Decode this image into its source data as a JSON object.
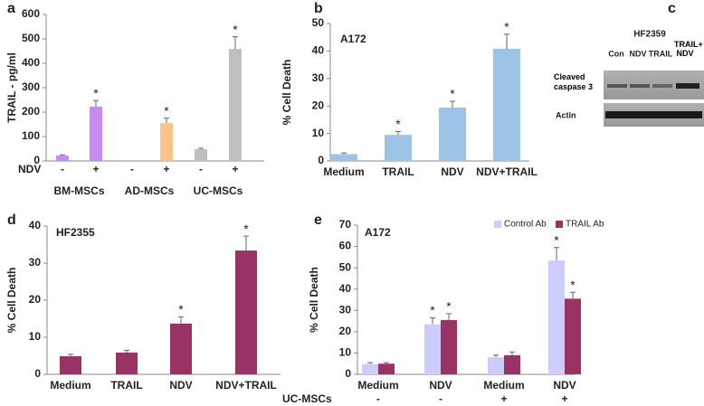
{
  "chart_data": [
    {
      "type": "bar",
      "panel": "a",
      "ylabel": "TRAIL -  pg/ml",
      "categories": [
        "-",
        "+",
        "-",
        "+",
        "-",
        "+"
      ],
      "category_label": "NDV",
      "groups": [
        "BM-MSCs",
        "AD-MSCs",
        "UC-MSCs"
      ],
      "values": [
        22,
        222,
        0,
        155,
        48,
        459
      ],
      "errors": [
        3,
        25,
        0,
        20,
        4,
        50
      ],
      "stars": [
        null,
        "*",
        null,
        "*",
        null,
        "*"
      ],
      "colors": [
        "#c88af0",
        "#c88af0",
        "#f9c38a",
        "#f9c38a",
        "#bfbfbf",
        "#bfbfbf"
      ],
      "ylim": [
        0,
        600
      ],
      "yticks": [
        0,
        100,
        200,
        300,
        400,
        500,
        600
      ]
    },
    {
      "type": "bar",
      "panel": "b",
      "title": "A172",
      "ylabel": "% Cell Death",
      "categories": [
        "Medium",
        "TRAIL",
        "NDV",
        "NDV+TRAIL"
      ],
      "values": [
        2.5,
        9.5,
        19.4,
        40.8
      ],
      "errors": [
        0.4,
        1.2,
        2.3,
        5.3
      ],
      "stars": [
        null,
        "*",
        "*",
        "*"
      ],
      "color": "#9dc3e6",
      "ylim": [
        0,
        50
      ],
      "yticks": [
        0,
        10,
        20,
        30,
        40,
        50
      ]
    },
    {
      "type": "bar",
      "panel": "d",
      "title": "HF2355",
      "ylabel": "% Cell Death",
      "categories": [
        "Medium",
        "TRAIL",
        "NDV",
        "NDV+TRAIL"
      ],
      "values": [
        4.9,
        5.9,
        13.7,
        33.4
      ],
      "errors": [
        0.5,
        0.6,
        1.8,
        3.9
      ],
      "stars": [
        null,
        null,
        "*",
        "*"
      ],
      "color": "#993366",
      "ylim": [
        0,
        40
      ],
      "yticks": [
        0,
        10,
        20,
        30,
        40
      ]
    },
    {
      "type": "grouped-bar",
      "panel": "e",
      "title": "A172",
      "ylabel": "% Cell Death",
      "categories": [
        "Medium",
        "NDV",
        "Medium",
        "NDV"
      ],
      "row2": {
        "label": "UC-MSCs",
        "values": [
          "-",
          "-",
          "+",
          "+"
        ]
      },
      "series": [
        {
          "name": "Control Ab",
          "color": "#ccccff",
          "values": [
            4.8,
            23.5,
            8,
            53.5
          ],
          "errors": [
            0.7,
            3,
            1,
            6
          ],
          "stars": [
            null,
            "*",
            null,
            "*"
          ]
        },
        {
          "name": "TRAIL Ab",
          "color": "#993366",
          "values": [
            5,
            25.5,
            9,
            35.5
          ],
          "errors": [
            0.5,
            3,
            1.5,
            3
          ],
          "stars": [
            null,
            "*",
            null,
            "*"
          ]
        }
      ],
      "ylim": [
        0,
        70
      ],
      "yticks": [
        0,
        10,
        20,
        30,
        40,
        50,
        60,
        70
      ]
    }
  ],
  "blot": {
    "panel": "c",
    "title": "HF2359",
    "lanes": [
      "Con",
      "NDV",
      "TRAIL",
      "TRAIL+ NDV"
    ],
    "rows": [
      "Cleaved caspase 3",
      "Actin"
    ]
  }
}
